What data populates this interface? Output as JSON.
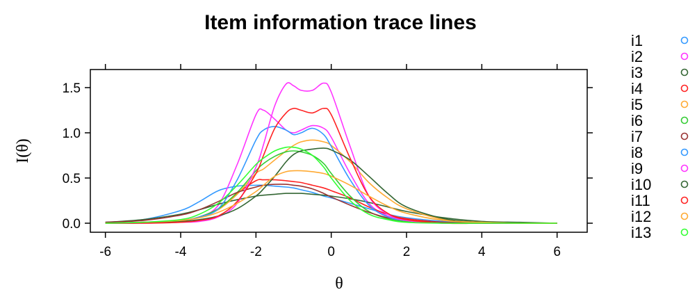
{
  "chart_data": {
    "type": "line",
    "title": "Item information trace lines",
    "xlabel": "θ",
    "ylabel": "I(θ)",
    "xlim": [
      -6.4,
      6.8
    ],
    "ylim": [
      -0.1,
      1.7
    ],
    "xticks": [
      -6,
      -4,
      -2,
      0,
      2,
      4,
      6
    ],
    "yticks": [
      0.0,
      0.5,
      1.0,
      1.5
    ],
    "xtick_labels": [
      "-6",
      "-4",
      "-2",
      "0",
      "2",
      "4",
      "6"
    ],
    "ytick_labels": [
      "0.0",
      "0.5",
      "1.0",
      "1.5"
    ],
    "grid": false,
    "legend_position": "right",
    "x": [
      -6,
      -5,
      -4,
      -3.5,
      -3,
      -2.5,
      -2,
      -1.8,
      -1.5,
      -1.2,
      -1,
      -0.8,
      -0.5,
      -0.2,
      0,
      0.5,
      1,
      1.5,
      2,
      3,
      4,
      5,
      6
    ],
    "series": [
      {
        "name": "i1",
        "color": "#3399ff",
        "values": [
          0.01,
          0.04,
          0.14,
          0.24,
          0.36,
          0.41,
          0.42,
          0.42,
          0.41,
          0.4,
          0.39,
          0.37,
          0.34,
          0.3,
          0.28,
          0.22,
          0.16,
          0.1,
          0.06,
          0.02,
          0.01,
          0.0,
          0.0
        ]
      },
      {
        "name": "i2",
        "color": "#ff33ff",
        "values": [
          0.0,
          0.01,
          0.03,
          0.07,
          0.2,
          0.65,
          1.2,
          1.25,
          1.15,
          1.03,
          1.0,
          1.03,
          1.08,
          1.05,
          0.95,
          0.55,
          0.22,
          0.08,
          0.03,
          0.0,
          0.0,
          0.0,
          0.0
        ]
      },
      {
        "name": "i3",
        "color": "#336633",
        "values": [
          0.01,
          0.04,
          0.1,
          0.15,
          0.21,
          0.26,
          0.3,
          0.31,
          0.32,
          0.33,
          0.33,
          0.33,
          0.32,
          0.31,
          0.3,
          0.27,
          0.23,
          0.18,
          0.13,
          0.06,
          0.02,
          0.01,
          0.0
        ]
      },
      {
        "name": "i4",
        "color": "#ff2222",
        "values": [
          0.0,
          0.01,
          0.03,
          0.07,
          0.16,
          0.33,
          0.47,
          0.48,
          0.48,
          0.47,
          0.46,
          0.45,
          0.42,
          0.39,
          0.36,
          0.28,
          0.18,
          0.1,
          0.05,
          0.01,
          0.0,
          0.0,
          0.0
        ]
      },
      {
        "name": "i5",
        "color": "#ffaa33",
        "values": [
          0.0,
          0.01,
          0.03,
          0.07,
          0.15,
          0.32,
          0.55,
          0.6,
          0.7,
          0.8,
          0.86,
          0.9,
          0.92,
          0.9,
          0.86,
          0.68,
          0.45,
          0.28,
          0.16,
          0.04,
          0.01,
          0.0,
          0.0
        ]
      },
      {
        "name": "i6",
        "color": "#33cc33",
        "values": [
          0.0,
          0.01,
          0.03,
          0.07,
          0.16,
          0.34,
          0.58,
          0.66,
          0.74,
          0.79,
          0.8,
          0.79,
          0.75,
          0.66,
          0.55,
          0.3,
          0.13,
          0.05,
          0.02,
          0.0,
          0.0,
          0.0,
          0.0
        ]
      },
      {
        "name": "i7",
        "color": "#993333",
        "values": [
          0.01,
          0.03,
          0.09,
          0.15,
          0.24,
          0.34,
          0.4,
          0.42,
          0.43,
          0.43,
          0.42,
          0.41,
          0.38,
          0.33,
          0.29,
          0.2,
          0.12,
          0.06,
          0.03,
          0.01,
          0.0,
          0.0,
          0.0
        ]
      },
      {
        "name": "i8",
        "color": "#3399ff",
        "values": [
          0.0,
          0.01,
          0.03,
          0.07,
          0.16,
          0.48,
          0.92,
          1.03,
          1.07,
          1.03,
          0.98,
          1.0,
          1.05,
          0.98,
          0.85,
          0.48,
          0.2,
          0.07,
          0.03,
          0.0,
          0.0,
          0.0,
          0.0
        ]
      },
      {
        "name": "i9",
        "color": "#ff33ff",
        "values": [
          0.0,
          0.0,
          0.01,
          0.02,
          0.07,
          0.22,
          0.62,
          0.87,
          1.3,
          1.54,
          1.52,
          1.47,
          1.47,
          1.55,
          1.45,
          0.85,
          0.3,
          0.1,
          0.03,
          0.0,
          0.0,
          0.0,
          0.0
        ]
      },
      {
        "name": "i10",
        "color": "#336633",
        "values": [
          0.0,
          0.01,
          0.02,
          0.04,
          0.08,
          0.16,
          0.3,
          0.38,
          0.52,
          0.68,
          0.76,
          0.8,
          0.82,
          0.83,
          0.81,
          0.7,
          0.52,
          0.33,
          0.18,
          0.05,
          0.01,
          0.0,
          0.0
        ]
      },
      {
        "name": "i11",
        "color": "#ff2222",
        "values": [
          0.0,
          0.0,
          0.01,
          0.03,
          0.08,
          0.24,
          0.55,
          0.75,
          1.05,
          1.22,
          1.27,
          1.25,
          1.22,
          1.27,
          1.2,
          0.72,
          0.3,
          0.11,
          0.04,
          0.0,
          0.0,
          0.0,
          0.0
        ]
      },
      {
        "name": "i12",
        "color": "#ffaa33",
        "values": [
          0.0,
          0.01,
          0.03,
          0.06,
          0.12,
          0.22,
          0.35,
          0.42,
          0.52,
          0.57,
          0.58,
          0.58,
          0.57,
          0.55,
          0.52,
          0.42,
          0.3,
          0.19,
          0.11,
          0.03,
          0.01,
          0.0,
          0.0
        ]
      },
      {
        "name": "i13",
        "color": "#33ff33",
        "values": [
          0.0,
          0.01,
          0.04,
          0.1,
          0.22,
          0.42,
          0.65,
          0.72,
          0.8,
          0.84,
          0.84,
          0.82,
          0.75,
          0.62,
          0.5,
          0.25,
          0.1,
          0.04,
          0.01,
          0.0,
          0.0,
          0.0,
          0.0
        ]
      }
    ]
  }
}
